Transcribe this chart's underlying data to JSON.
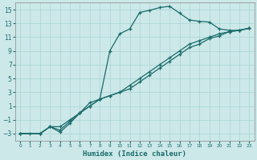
{
  "xlabel": "Humidex (Indice chaleur)",
  "bg_color": "#cce8e8",
  "grid_color": "#aad4d4",
  "line_color": "#1a6b6b",
  "xlim": [
    -0.5,
    23.5
  ],
  "ylim": [
    -4,
    16
  ],
  "xticks": [
    0,
    1,
    2,
    3,
    4,
    5,
    6,
    7,
    8,
    9,
    10,
    11,
    12,
    13,
    14,
    15,
    16,
    17,
    18,
    19,
    20,
    21,
    22,
    23
  ],
  "yticks": [
    -3,
    -1,
    1,
    3,
    5,
    7,
    9,
    11,
    13,
    15
  ],
  "line1_x": [
    0,
    1,
    2,
    3,
    4,
    5,
    6,
    7,
    8,
    9,
    10,
    11,
    12,
    13,
    14,
    15,
    16,
    17,
    18,
    19,
    20,
    21,
    22,
    23
  ],
  "line1_y": [
    -3,
    -3,
    -3,
    -2,
    -2.8,
    -1.5,
    0,
    1.5,
    2,
    9,
    11.5,
    12.2,
    14.6,
    14.9,
    15.3,
    15.5,
    14.5,
    13.5,
    13.3,
    13.2,
    12.2,
    12.0,
    12.0,
    12.3
  ],
  "line2_x": [
    0,
    2,
    3,
    4,
    5,
    6,
    7,
    8,
    9,
    10,
    11,
    12,
    13,
    14,
    15,
    16,
    17,
    18,
    19,
    20,
    21,
    22,
    23
  ],
  "line2_y": [
    -3,
    -3,
    -2,
    -2,
    -1,
    0,
    1,
    2,
    2.5,
    3,
    3.5,
    4.5,
    5.5,
    6.5,
    7.5,
    8.5,
    9.5,
    10,
    10.8,
    11.2,
    11.8,
    12.0,
    12.3
  ],
  "line3_x": [
    0,
    2,
    3,
    4,
    5,
    6,
    7,
    8,
    9,
    10,
    11,
    12,
    13,
    14,
    15,
    16,
    17,
    18,
    19,
    20,
    21,
    22,
    23
  ],
  "line3_y": [
    -3,
    -3,
    -2,
    -2.5,
    -1.2,
    0,
    1,
    2,
    2.5,
    3,
    4,
    5,
    6,
    7,
    8,
    9,
    10,
    10.5,
    11,
    11.5,
    11.8,
    12.0,
    12.3
  ]
}
